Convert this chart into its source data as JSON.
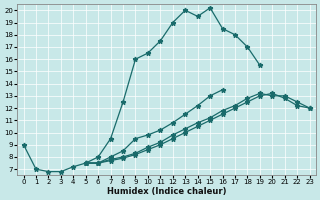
{
  "xlabel": "Humidex (Indice chaleur)",
  "bg_color": "#c8e8e8",
  "line_color": "#1a6b6b",
  "grid_color": "#ffffff",
  "xlim": [
    -0.5,
    23.5
  ],
  "ylim": [
    6.5,
    20.5
  ],
  "xticks": [
    0,
    1,
    2,
    3,
    4,
    5,
    6,
    7,
    8,
    9,
    10,
    11,
    12,
    13,
    14,
    15,
    16,
    17,
    18,
    19,
    20,
    21,
    22,
    23
  ],
  "yticks": [
    7,
    8,
    9,
    10,
    11,
    12,
    13,
    14,
    15,
    16,
    17,
    18,
    19,
    20
  ],
  "line1_x": [
    0,
    1,
    2,
    3,
    4,
    5,
    6,
    7,
    8,
    9,
    10,
    11,
    12,
    13,
    14,
    15,
    16,
    17,
    18,
    19
  ],
  "line1_y": [
    9.0,
    7.0,
    6.8,
    6.8,
    7.2,
    7.5,
    8.0,
    9.5,
    12.5,
    16.0,
    16.5,
    17.5,
    19.0,
    20.0,
    19.5,
    20.2,
    18.5,
    18.0,
    17.0,
    15.5
  ],
  "line2_x": [
    5,
    6,
    7,
    8,
    9,
    10,
    11,
    12,
    13,
    14,
    15,
    16
  ],
  "line2_y": [
    7.5,
    7.5,
    8.0,
    8.5,
    9.5,
    9.8,
    10.2,
    10.8,
    11.5,
    12.2,
    13.0,
    13.5
  ],
  "line3_x": [
    5,
    6,
    7,
    8,
    9,
    10,
    11,
    12,
    13,
    14,
    15,
    16,
    17,
    18,
    19,
    20,
    21,
    22,
    23
  ],
  "line3_y": [
    7.5,
    7.5,
    7.8,
    8.0,
    8.3,
    8.8,
    9.2,
    9.8,
    10.3,
    10.8,
    11.2,
    11.8,
    12.2,
    12.8,
    13.2,
    13.0,
    13.0,
    12.5,
    12.0
  ],
  "line4_x": [
    5,
    6,
    7,
    8,
    9,
    10,
    11,
    12,
    13,
    14,
    15,
    16,
    17,
    18,
    19,
    20,
    21,
    22,
    23
  ],
  "line4_y": [
    7.5,
    7.5,
    7.7,
    7.9,
    8.2,
    8.6,
    9.0,
    9.5,
    10.0,
    10.5,
    11.0,
    11.5,
    12.0,
    12.5,
    13.0,
    13.2,
    12.8,
    12.2,
    12.0
  ]
}
